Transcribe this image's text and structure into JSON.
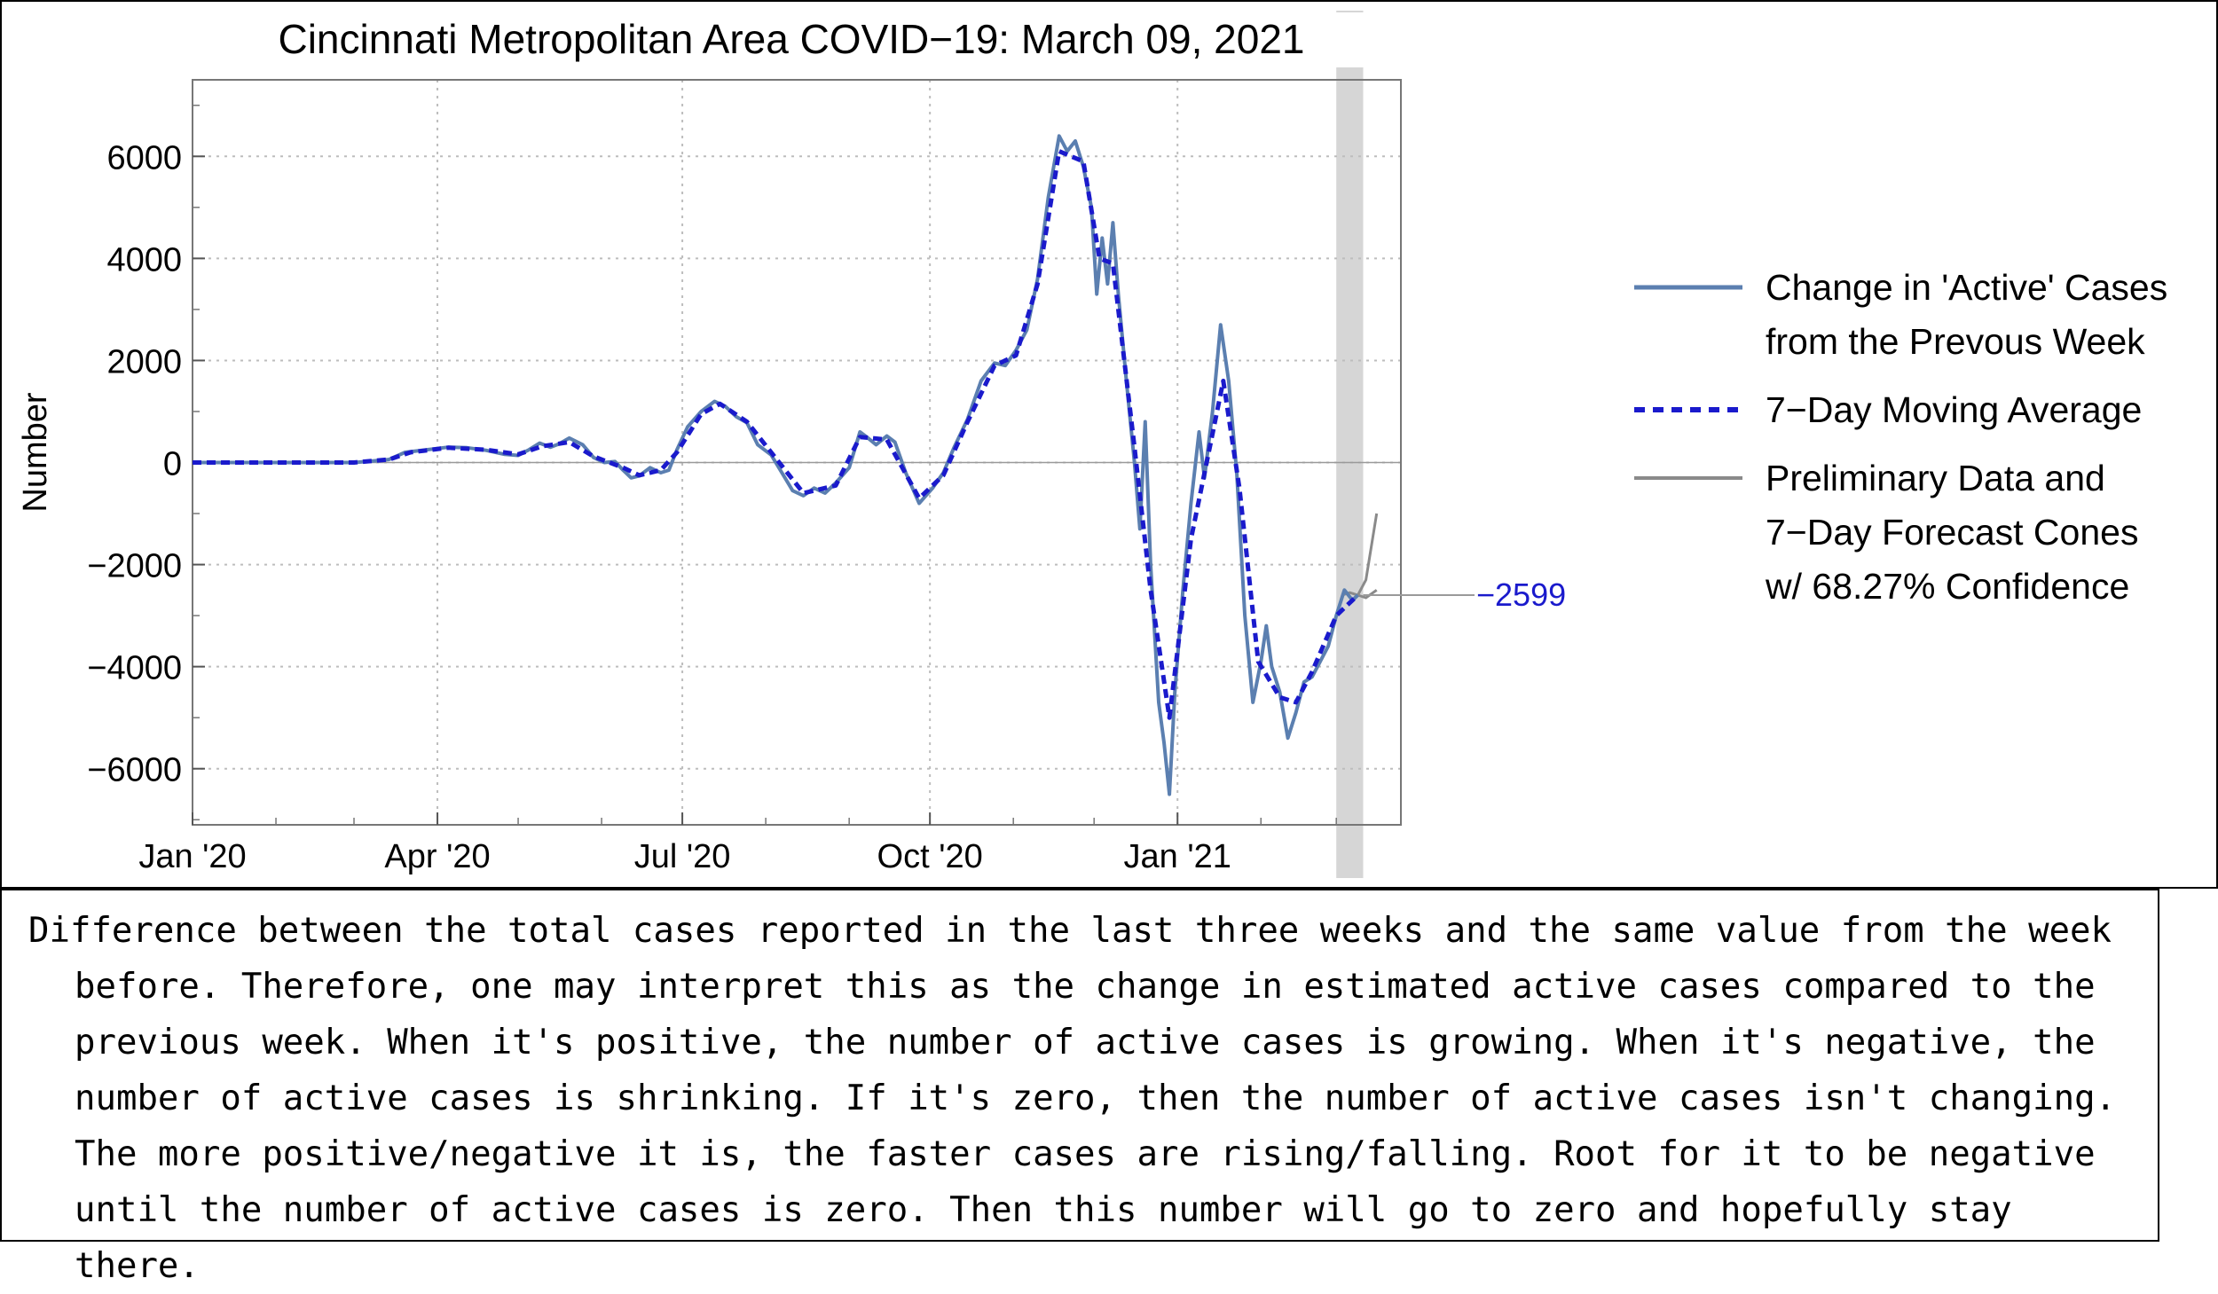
{
  "chart_data": {
    "type": "line",
    "title": "Cincinnati Metropolitan Area COVID−19: March 09, 2021",
    "ylabel": "Number",
    "xlabel": "",
    "ylim": [
      -7100,
      7500
    ],
    "x_ticks": [
      "Jan '20",
      "Apr '20",
      "Jul '20",
      "Oct '20",
      "Jan '21"
    ],
    "x_tick_dates": [
      "2020-01-01",
      "2020-04-01",
      "2020-07-01",
      "2020-10-01",
      "2021-01-01"
    ],
    "y_ticks": [
      -6000,
      -4000,
      -2000,
      0,
      2000,
      4000,
      6000
    ],
    "xlim": [
      "2020-01-01",
      "2021-03-25"
    ],
    "preliminary_band": [
      "2021-03-01",
      "2021-03-11"
    ],
    "grid": true,
    "legend_position": "right",
    "end_label": "−2599",
    "end_value": -2599,
    "series": [
      {
        "name": "Change in 'Active' Cases from the Prevous Week",
        "color": "#5b7fb0",
        "style": "solid",
        "points": [
          [
            "2020-01-01",
            0
          ],
          [
            "2020-02-15",
            0
          ],
          [
            "2020-03-01",
            0
          ],
          [
            "2020-03-08",
            30
          ],
          [
            "2020-03-14",
            60
          ],
          [
            "2020-03-20",
            200
          ],
          [
            "2020-03-28",
            250
          ],
          [
            "2020-04-05",
            300
          ],
          [
            "2020-04-12",
            290
          ],
          [
            "2020-04-19",
            240
          ],
          [
            "2020-04-26",
            160
          ],
          [
            "2020-05-01",
            140
          ],
          [
            "2020-05-05",
            250
          ],
          [
            "2020-05-09",
            380
          ],
          [
            "2020-05-13",
            300
          ],
          [
            "2020-05-16",
            360
          ],
          [
            "2020-05-20",
            480
          ],
          [
            "2020-05-25",
            350
          ],
          [
            "2020-05-29",
            100
          ],
          [
            "2020-06-02",
            0
          ],
          [
            "2020-06-06",
            20
          ],
          [
            "2020-06-09",
            -150
          ],
          [
            "2020-06-12",
            -300
          ],
          [
            "2020-06-15",
            -260
          ],
          [
            "2020-06-19",
            -100
          ],
          [
            "2020-06-23",
            -200
          ],
          [
            "2020-06-26",
            -150
          ],
          [
            "2020-06-29",
            250
          ],
          [
            "2020-07-03",
            700
          ],
          [
            "2020-07-08",
            1000
          ],
          [
            "2020-07-13",
            1200
          ],
          [
            "2020-07-17",
            1100
          ],
          [
            "2020-07-21",
            900
          ],
          [
            "2020-07-25",
            780
          ],
          [
            "2020-07-29",
            350
          ],
          [
            "2020-08-03",
            150
          ],
          [
            "2020-08-07",
            -200
          ],
          [
            "2020-08-11",
            -550
          ],
          [
            "2020-08-15",
            -650
          ],
          [
            "2020-08-19",
            -500
          ],
          [
            "2020-08-23",
            -600
          ],
          [
            "2020-08-27",
            -400
          ],
          [
            "2020-09-01",
            -100
          ],
          [
            "2020-09-05",
            600
          ],
          [
            "2020-09-08",
            480
          ],
          [
            "2020-09-11",
            350
          ],
          [
            "2020-09-15",
            520
          ],
          [
            "2020-09-18",
            400
          ],
          [
            "2020-09-22",
            -200
          ],
          [
            "2020-09-27",
            -800
          ],
          [
            "2020-10-02",
            -500
          ],
          [
            "2020-10-06",
            -200
          ],
          [
            "2020-10-10",
            300
          ],
          [
            "2020-10-15",
            850
          ],
          [
            "2020-10-20",
            1600
          ],
          [
            "2020-10-25",
            1950
          ],
          [
            "2020-10-29",
            1900
          ],
          [
            "2020-11-02",
            2200
          ],
          [
            "2020-11-06",
            2600
          ],
          [
            "2020-11-10",
            3600
          ],
          [
            "2020-11-14",
            5200
          ],
          [
            "2020-11-18",
            6400
          ],
          [
            "2020-11-21",
            6100
          ],
          [
            "2020-11-24",
            6300
          ],
          [
            "2020-11-27",
            5800
          ],
          [
            "2020-11-30",
            5000
          ],
          [
            "2020-12-02",
            3300
          ],
          [
            "2020-12-04",
            4400
          ],
          [
            "2020-12-06",
            3500
          ],
          [
            "2020-12-08",
            4700
          ],
          [
            "2020-12-10",
            3300
          ],
          [
            "2020-12-13",
            1600
          ],
          [
            "2020-12-16",
            0
          ],
          [
            "2020-12-18",
            -1300
          ],
          [
            "2020-12-20",
            800
          ],
          [
            "2020-12-22",
            -2000
          ],
          [
            "2020-12-25",
            -4700
          ],
          [
            "2020-12-27",
            -5500
          ],
          [
            "2020-12-29",
            -6500
          ],
          [
            "2020-12-31",
            -4500
          ],
          [
            "2021-01-03",
            -2500
          ],
          [
            "2021-01-06",
            -800
          ],
          [
            "2021-01-09",
            600
          ],
          [
            "2021-01-11",
            -300
          ],
          [
            "2021-01-14",
            1000
          ],
          [
            "2021-01-17",
            2700
          ],
          [
            "2021-01-20",
            1600
          ],
          [
            "2021-01-23",
            -200
          ],
          [
            "2021-01-26",
            -3000
          ],
          [
            "2021-01-29",
            -4700
          ],
          [
            "2021-02-01",
            -3900
          ],
          [
            "2021-02-03",
            -3200
          ],
          [
            "2021-02-05",
            -4000
          ],
          [
            "2021-02-08",
            -4500
          ],
          [
            "2021-02-11",
            -5400
          ],
          [
            "2021-02-14",
            -4900
          ],
          [
            "2021-02-17",
            -4300
          ],
          [
            "2021-02-20",
            -4200
          ],
          [
            "2021-02-23",
            -3900
          ],
          [
            "2021-02-26",
            -3600
          ],
          [
            "2021-03-01",
            -3000
          ],
          [
            "2021-03-04",
            -2500
          ],
          [
            "2021-03-07",
            -2700
          ],
          [
            "2021-03-09",
            -2599
          ]
        ]
      },
      {
        "name": "7−Day Moving Average",
        "color": "#1a1acc",
        "style": "dashed",
        "points": [
          [
            "2020-01-01",
            0
          ],
          [
            "2020-03-01",
            0
          ],
          [
            "2020-03-14",
            60
          ],
          [
            "2020-03-22",
            200
          ],
          [
            "2020-04-05",
            290
          ],
          [
            "2020-04-19",
            250
          ],
          [
            "2020-05-01",
            160
          ],
          [
            "2020-05-10",
            320
          ],
          [
            "2020-05-20",
            400
          ],
          [
            "2020-05-29",
            120
          ],
          [
            "2020-06-09",
            -100
          ],
          [
            "2020-06-15",
            -250
          ],
          [
            "2020-06-23",
            -150
          ],
          [
            "2020-06-29",
            200
          ],
          [
            "2020-07-08",
            950
          ],
          [
            "2020-07-15",
            1150
          ],
          [
            "2020-07-25",
            800
          ],
          [
            "2020-08-03",
            200
          ],
          [
            "2020-08-15",
            -600
          ],
          [
            "2020-08-27",
            -450
          ],
          [
            "2020-09-05",
            500
          ],
          [
            "2020-09-15",
            450
          ],
          [
            "2020-09-27",
            -700
          ],
          [
            "2020-10-06",
            -250
          ],
          [
            "2020-10-15",
            800
          ],
          [
            "2020-10-25",
            1900
          ],
          [
            "2020-11-02",
            2100
          ],
          [
            "2020-11-10",
            3500
          ],
          [
            "2020-11-18",
            6100
          ],
          [
            "2020-11-27",
            5900
          ],
          [
            "2020-12-03",
            4000
          ],
          [
            "2020-12-08",
            3900
          ],
          [
            "2020-12-16",
            300
          ],
          [
            "2020-12-22",
            -2500
          ],
          [
            "2020-12-29",
            -5000
          ],
          [
            "2021-01-06",
            -1500
          ],
          [
            "2021-01-13",
            300
          ],
          [
            "2021-01-18",
            1600
          ],
          [
            "2021-01-24",
            -500
          ],
          [
            "2021-01-31",
            -3900
          ],
          [
            "2021-02-08",
            -4600
          ],
          [
            "2021-02-14",
            -4700
          ],
          [
            "2021-02-20",
            -4100
          ],
          [
            "2021-03-01",
            -3000
          ],
          [
            "2021-03-09",
            -2599
          ]
        ]
      },
      {
        "name": "Preliminary Data and 7−Day Forecast Cones w/ 68.27% Confidence",
        "color": "#8a8a8a",
        "style": "solid",
        "points": [
          [
            "2021-03-03",
            -2600
          ],
          [
            "2021-03-06",
            -2550
          ],
          [
            "2021-03-09",
            -2599
          ],
          [
            "2021-03-12",
            -2300
          ],
          [
            "2021-03-16",
            -1000
          ]
        ],
        "lower": [
          [
            "2021-03-09",
            -2599
          ],
          [
            "2021-03-12",
            -2650
          ],
          [
            "2021-03-16",
            -2500
          ]
        ]
      }
    ]
  },
  "legend": {
    "entries": [
      {
        "label_line1": "Change in 'Active' Cases",
        "label_line2": "from the Prevous Week",
        "label_line3": "",
        "color": "#5b7fb0",
        "style": "solid"
      },
      {
        "label_line1": "7−Day Moving Average",
        "label_line2": "",
        "label_line3": "",
        "color": "#1a1acc",
        "style": "dashed"
      },
      {
        "label_line1": "Preliminary Data and",
        "label_line2": "7−Day Forecast Cones",
        "label_line3": "w/ 68.27% Confidence",
        "color": "#8a8a8a",
        "style": "solid"
      }
    ]
  },
  "caption": {
    "text": "Difference between the total cases reported in the last three weeks and the same value from the week before. Therefore, one may interpret this as the change in estimated active cases compared to the previous week. When it's positive, the number of active cases is growing. When it's negative, the number of active cases is shrinking. If it's zero, then the number of active cases isn't changing. The more positive/negative it is, the faster cases are rising/falling. Root for it to be negative until the number of active cases is zero. Then this number will go to zero and hopefully stay there."
  }
}
